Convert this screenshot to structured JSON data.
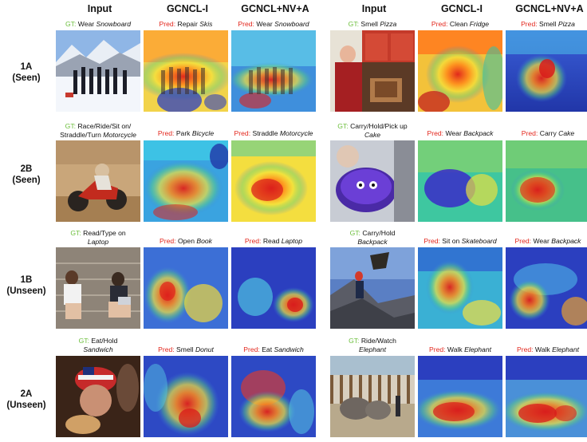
{
  "column_headers": [
    "Input",
    "GCNCL-I",
    "GCNCL+NV+A",
    "Input",
    "GCNCL-I",
    "GCNCL+NV+A"
  ],
  "row_labels": [
    {
      "line1": "1A",
      "line2": "(Seen)"
    },
    {
      "line1": "2B",
      "line2": "(Seen)"
    },
    {
      "line1": "1B",
      "line2": "(Unseen)"
    },
    {
      "line1": "2A",
      "line2": "(Unseen)"
    }
  ],
  "captions": {
    "r0": {
      "left_gt": {
        "tag": "GT:",
        "verb": "Wear",
        "obj": "Snowboard"
      },
      "left_p1": {
        "tag": "Pred:",
        "verb": "Repair",
        "obj": "Skis"
      },
      "left_p2": {
        "tag": "Pred:",
        "verb": "Wear",
        "obj": "Snowboard"
      },
      "right_gt": {
        "tag": "GT:",
        "verb": "Smell",
        "obj": "Pizza"
      },
      "right_p1": {
        "tag": "Pred:",
        "verb": "Clean",
        "obj": "Fridge"
      },
      "right_p2": {
        "tag": "Pred:",
        "verb": "Smell",
        "obj": "Pizza"
      }
    },
    "r1": {
      "left_gt": {
        "tag": "GT:",
        "verb_a": "Race/Ride/Sit on/",
        "verb_b": "Straddle/Turn",
        "obj": "Motorcycle"
      },
      "left_p1": {
        "tag": "Pred:",
        "verb": "Park",
        "obj": "Bicycle"
      },
      "left_p2": {
        "tag": "Pred:",
        "verb": "Straddle",
        "obj": "Motorcycle"
      },
      "right_gt": {
        "tag": "GT:",
        "verb": "Carry/Hold/Pick up",
        "obj": "Cake"
      },
      "right_p1": {
        "tag": "Pred:",
        "verb": "Wear",
        "obj": "Backpack"
      },
      "right_p2": {
        "tag": "Pred:",
        "verb": "Carry",
        "obj": "Cake"
      }
    },
    "r2": {
      "left_gt": {
        "tag": "GT:",
        "verb": "Read/Type on",
        "obj": "Laptop"
      },
      "left_p1": {
        "tag": "Pred:",
        "verb": "Open",
        "obj": "Book"
      },
      "left_p2": {
        "tag": "Pred:",
        "verb": "Read",
        "obj": "Laptop"
      },
      "right_gt": {
        "tag": "GT:",
        "verb": "Carry/Hold",
        "obj": "Backpack"
      },
      "right_p1": {
        "tag": "Pred:",
        "verb": "Sit on",
        "obj": "Skateboard"
      },
      "right_p2": {
        "tag": "Pred:",
        "verb": "Wear",
        "obj": "Backpack"
      }
    },
    "r3": {
      "left_gt": {
        "tag": "GT:",
        "verb": "Eat/Hold",
        "obj": "Sandwich"
      },
      "left_p1": {
        "tag": "Pred:",
        "verb": "Smell",
        "obj": "Donut"
      },
      "left_p2": {
        "tag": "Pred:",
        "verb": "Eat",
        "obj": "Sandwich"
      },
      "right_gt": {
        "tag": "GT:",
        "verb": "Ride/Watch",
        "obj": "Elephant"
      },
      "right_p1": {
        "tag": "Pred:",
        "verb": "Walk",
        "obj": "Elephant"
      },
      "right_p2": {
        "tag": "Pred:",
        "verb": "Walk",
        "obj": "Elephant"
      }
    }
  },
  "colors": {
    "gt_tag": "#6cbf3c",
    "pred_tag": "#e3261c",
    "heat_hot": "#d7191c",
    "heat_cold": "#2c3fbf"
  }
}
